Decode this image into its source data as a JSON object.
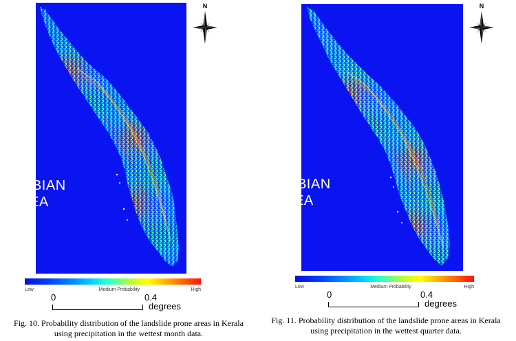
{
  "figures": [
    {
      "sea_label_line1": "ARABIAN",
      "sea_label_line2": "SEA",
      "north_label": "N",
      "legend": {
        "low": "Low",
        "mid": "Medium Probability",
        "high": "High"
      },
      "scale": {
        "start": "0",
        "mid": "0.4",
        "unit": "degrees"
      },
      "caption_line1": "Fig. 10. Probability distribution of the landslide prone areas in Kerala",
      "caption_line2": "using precipitation in the wettest month data."
    },
    {
      "sea_label_line1": "ARABIAN",
      "sea_label_line2": "SEA",
      "north_label": "N",
      "legend": {
        "low": "Low",
        "mid": "Medium Probability",
        "high": "High"
      },
      "scale": {
        "start": "0",
        "mid": "0.4",
        "unit": "degrees"
      },
      "caption_line1": "Fig. 11. Probability distribution of the landslide prone areas in Kerala",
      "caption_line2": "using precipitation in the wettest quarter data."
    }
  ],
  "colors": {
    "sea": "#0a14f0",
    "low": "#0010e0",
    "medium": "#00d0ff",
    "high": "#ff1010"
  }
}
